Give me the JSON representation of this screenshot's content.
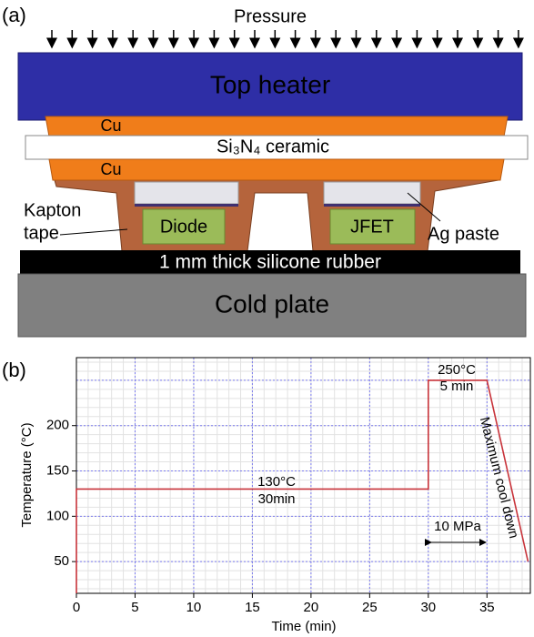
{
  "panel_a": {
    "label": "(a)",
    "pressure": "Pressure",
    "top_heater": "Top heater",
    "cu_top": "Cu",
    "ceramic": "Si₃N₄ ceramic",
    "cu_bottom": "Cu",
    "kapton_1": "Kapton",
    "kapton_2": "tape",
    "diode": "Diode",
    "jfet": "JFET",
    "ag_paste": "Ag paste",
    "rubber": "1 mm thick silicone rubber",
    "cold_plate": "Cold plate"
  },
  "chart_data": {
    "type": "line",
    "label": "(b)",
    "x_label": "Time (min)",
    "y_label": "Temperature (°C)",
    "x": [
      0,
      0,
      30,
      30,
      35,
      38.5
    ],
    "values": [
      15,
      130,
      130,
      250,
      250,
      50
    ],
    "color": "#c8333a",
    "xlim": [
      0,
      38.7
    ],
    "ylim": [
      15,
      275
    ],
    "xticks": [
      0,
      5,
      10,
      15,
      20,
      25,
      30,
      35
    ],
    "yticks": [
      50,
      100,
      150,
      200
    ],
    "grid": true,
    "annotations": [
      "130°C",
      "30min",
      "250°C",
      "5 min",
      "Maximum cool down",
      "10 MPa"
    ]
  }
}
